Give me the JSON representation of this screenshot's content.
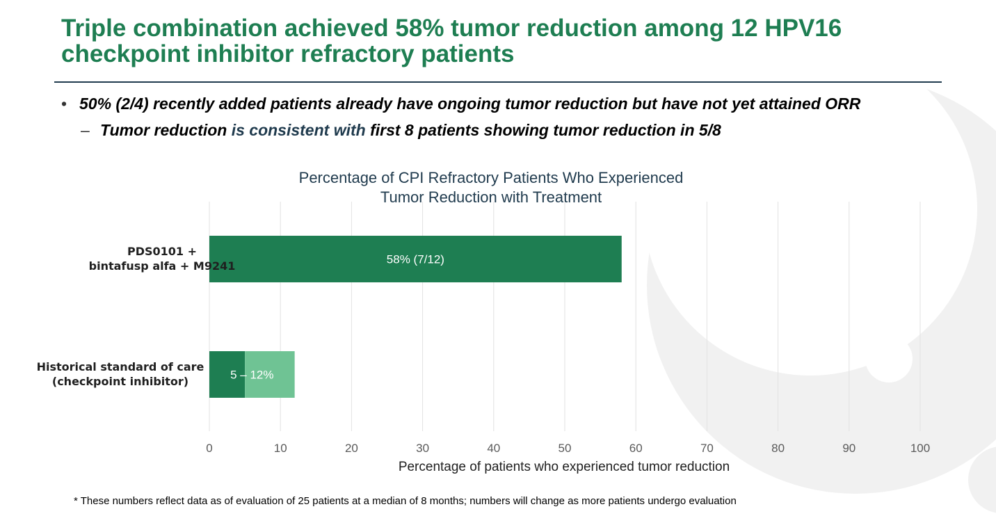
{
  "slide": {
    "title": "Triple combination achieved 58% tumor reduction among 12 HPV16 checkpoint inhibitor refractory patients",
    "bullets": [
      {
        "marker": "•",
        "text": "50% (2/4) recently added patients already have ongoing tumor reduction but have not yet attained ORR"
      },
      {
        "marker": "–",
        "text_a": "Tumor reduction ",
        "text_b": "is consistent with",
        "text_c": " first 8 patients showing tumor reduction in 5/8"
      }
    ],
    "footnote": "* These numbers reflect data as of evaluation of 25 patients at a median of 8 months; numbers will change as more patients undergo evaluation"
  },
  "chart_data": {
    "type": "bar",
    "orientation": "horizontal",
    "title": "Percentage of CPI Refractory Patients Who Experienced Tumor Reduction with Treatment",
    "xlabel": "Percentage of patients who experienced tumor reduction",
    "ylabel": "",
    "xlim": [
      0,
      100
    ],
    "xticks": [
      "0",
      "10",
      "20",
      "30",
      "40",
      "50",
      "60",
      "70",
      "80",
      "90",
      "100"
    ],
    "grid": true,
    "categories": [
      "PDS0101 + bintafusp alfa + M9241",
      "Historical standard of care (checkpoint inhibitor)"
    ],
    "category_lines": [
      [
        "PDS0101 +",
        "bintafusp alfa + M9241"
      ],
      [
        "Historical standard of care",
        "(checkpoint inhibitor)"
      ]
    ],
    "bars": [
      {
        "category": "PDS0101 + bintafusp alfa + M9241",
        "segments": [
          {
            "start": 0,
            "end": 58,
            "color": "#1e7e52"
          }
        ],
        "label": "58% (7/12)"
      },
      {
        "category": "Historical standard of care (checkpoint inhibitor)",
        "segments": [
          {
            "start": 0,
            "end": 5,
            "color": "#1e7e52"
          },
          {
            "start": 5,
            "end": 12,
            "color": "#6fc394"
          }
        ],
        "label": "5 – 12%"
      }
    ],
    "colors": {
      "primary": "#1e7e52",
      "light": "#6fc394",
      "grid": "#e2e2e2",
      "axis_text": "#595959",
      "title": "#1f3a4d"
    }
  }
}
